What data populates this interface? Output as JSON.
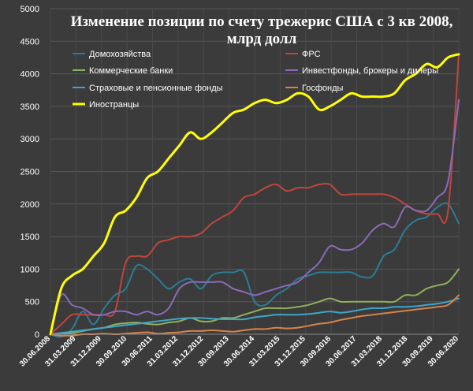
{
  "chart_data": {
    "type": "line",
    "title_lines": [
      "Изменение позиции по счету трежерис США с 3 кв 2008,",
      "млрд долл"
    ],
    "xlabel": "",
    "ylabel": "",
    "ylim": [
      0,
      5000
    ],
    "yticks": [
      "0",
      "500",
      "1000",
      "1500",
      "2000",
      "2500",
      "3000",
      "3500",
      "4000",
      "4500",
      "5000"
    ],
    "x_tick_labels": [
      "30.06.2008",
      "31.03.2009",
      "31.12.2009",
      "30.09.2010",
      "30.06.2011",
      "31.03.2012",
      "31.12.2012",
      "30.09.2013",
      "30.06.2014",
      "31.03.2015",
      "31.12.2015",
      "30.09.2016",
      "30.06.2017",
      "31.03.2018",
      "31.12.2018",
      "30.09.2019",
      "30.06.2020"
    ],
    "grid": true,
    "legend_position": "top-left",
    "series": [
      {
        "name": "Домохозяйства",
        "color": "#2a7d96",
        "values": [
          0,
          -40,
          80,
          350,
          150,
          400,
          600,
          700,
          1050,
          1000,
          850,
          700,
          800,
          850,
          700,
          900,
          950,
          950,
          950,
          500,
          450,
          600,
          700,
          850,
          900,
          950,
          950,
          950,
          950,
          880,
          900,
          1200,
          1300,
          1600,
          1750,
          1800,
          1950,
          2000,
          1700
        ]
      },
      {
        "name": "ФРС",
        "color": "#c0453d",
        "values": [
          0,
          150,
          300,
          300,
          300,
          300,
          350,
          1100,
          1200,
          1200,
          1400,
          1450,
          1500,
          1500,
          1550,
          1700,
          1800,
          1900,
          2100,
          2150,
          2250,
          2300,
          2200,
          2250,
          2250,
          2300,
          2300,
          2150,
          2150,
          2150,
          2150,
          2150,
          2100,
          2000,
          1900,
          1850,
          1850,
          1900,
          4300
        ]
      },
      {
        "name": "Коммерческие банки",
        "color": "#8fb05a",
        "values": [
          0,
          10,
          20,
          50,
          80,
          100,
          150,
          170,
          180,
          160,
          150,
          180,
          200,
          250,
          200,
          200,
          250,
          250,
          300,
          350,
          400,
          400,
          400,
          420,
          450,
          500,
          550,
          500,
          500,
          500,
          500,
          500,
          500,
          600,
          600,
          700,
          750,
          800,
          1000
        ]
      },
      {
        "name": "Инвестфонды, брокеры и дилеры",
        "color": "#8a6bb8",
        "values": [
          0,
          600,
          450,
          400,
          300,
          300,
          350,
          350,
          300,
          350,
          300,
          400,
          700,
          800,
          800,
          800,
          800,
          700,
          650,
          600,
          650,
          700,
          750,
          800,
          950,
          1100,
          1350,
          1300,
          1300,
          1400,
          1600,
          1700,
          1650,
          1950,
          1900,
          1900,
          2100,
          2350,
          3600
        ]
      },
      {
        "name": "Страховые и пенсионные фонды",
        "color": "#3ea6c8",
        "values": [
          0,
          20,
          40,
          60,
          80,
          100,
          120,
          140,
          160,
          180,
          200,
          220,
          240,
          250,
          250,
          240,
          230,
          230,
          230,
          260,
          280,
          300,
          300,
          300,
          310,
          330,
          350,
          330,
          350,
          380,
          400,
          400,
          420,
          420,
          430,
          450,
          470,
          500,
          550
        ]
      },
      {
        "name": "Госфонды",
        "color": "#d8824a",
        "values": [
          0,
          -20,
          -20,
          0,
          0,
          10,
          0,
          10,
          20,
          30,
          10,
          20,
          30,
          50,
          50,
          60,
          50,
          40,
          60,
          80,
          80,
          100,
          90,
          100,
          130,
          160,
          180,
          220,
          250,
          280,
          300,
          320,
          340,
          360,
          380,
          400,
          420,
          450,
          600
        ]
      },
      {
        "name": "Иностранцы",
        "color": "#ffff00",
        "values": [
          0,
          700,
          900,
          1000,
          1200,
          1400,
          1800,
          1900,
          2100,
          2400,
          2500,
          2700,
          2900,
          3100,
          3000,
          3100,
          3250,
          3400,
          3450,
          3550,
          3600,
          3550,
          3600,
          3700,
          3650,
          3450,
          3500,
          3600,
          3700,
          3650,
          3650,
          3650,
          3700,
          3900,
          4000,
          4150,
          4100,
          4250,
          4300
        ]
      }
    ]
  }
}
